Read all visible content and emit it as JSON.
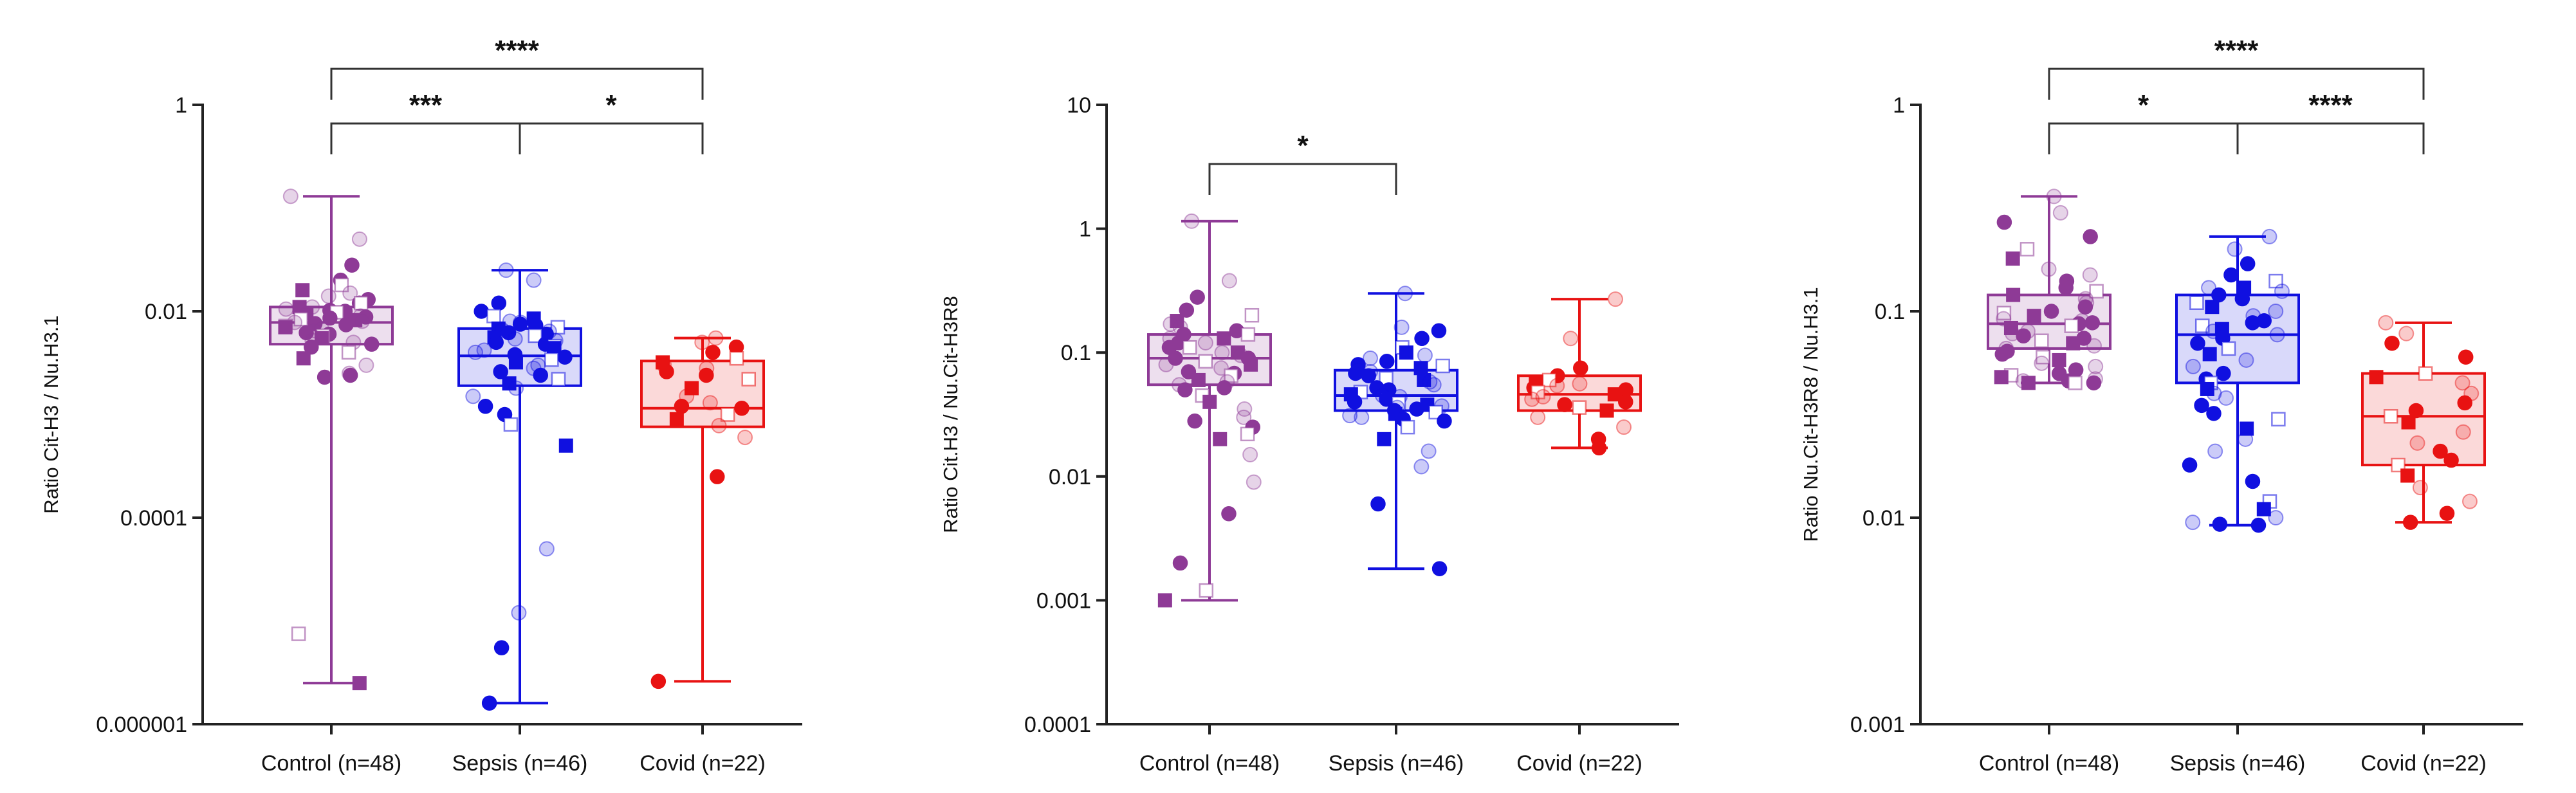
{
  "chart_data": [
    {
      "type": "box",
      "ylabel": "Ratio Cit-H3 / Nu.H3.1",
      "yscale": "log",
      "ylim": [
        1e-06,
        1
      ],
      "yticks": [
        {
          "value": 1,
          "label": "1"
        },
        {
          "value": 0.01,
          "label": "0.01"
        },
        {
          "value": 0.0001,
          "label": "0.0001"
        },
        {
          "value": 1e-06,
          "label": "0.000001"
        }
      ],
      "categories": [
        "Control (n=48)",
        "Sepsis (n=46)",
        "Covid (n=22)"
      ],
      "colors": [
        "#8e3a96",
        "#1010e0",
        "#e81212"
      ],
      "boxes": [
        {
          "min": 2.5e-06,
          "q1": 0.0048,
          "median": 0.0078,
          "q3": 0.011,
          "max": 0.13
        },
        {
          "min": 1.6e-06,
          "q1": 0.0019,
          "median": 0.0037,
          "q3": 0.0068,
          "max": 0.025
        },
        {
          "min": 2.6e-06,
          "q1": 0.00076,
          "median": 0.00115,
          "q3": 0.0033,
          "max": 0.0055
        }
      ],
      "points": [
        [
          0.13,
          0.05,
          0.028,
          0.02,
          0.018,
          0.016,
          0.015,
          0.014,
          0.013,
          0.012,
          0.012,
          0.011,
          0.011,
          0.0105,
          0.0102,
          0.01,
          0.0098,
          0.0095,
          0.0092,
          0.009,
          0.0088,
          0.0086,
          0.0084,
          0.0082,
          0.008,
          0.0078,
          0.0076,
          0.0074,
          0.0072,
          0.007,
          0.0068,
          0.0065,
          0.0062,
          0.006,
          0.0058,
          0.0055,
          0.0052,
          0.005,
          0.0048,
          0.0045,
          0.004,
          0.0035,
          0.003,
          0.0025,
          0.0024,
          0.0023,
          7.5e-06,
          2.5e-06
        ],
        [
          0.025,
          0.02,
          0.012,
          0.01,
          0.009,
          0.0085,
          0.008,
          0.0078,
          0.0075,
          0.0073,
          0.007,
          0.0068,
          0.0066,
          0.0064,
          0.0062,
          0.006,
          0.0058,
          0.0056,
          0.0054,
          0.0052,
          0.005,
          0.0048,
          0.0046,
          0.0044,
          0.0042,
          0.004,
          0.0038,
          0.0036,
          0.0034,
          0.0032,
          0.003,
          0.0028,
          0.0026,
          0.0024,
          0.0022,
          0.002,
          0.0018,
          0.0015,
          0.0012,
          0.001,
          0.0008,
          0.0005,
          5e-05,
          1.2e-05,
          5.5e-06,
          1.6e-06
        ],
        [
          0.0055,
          0.005,
          0.0045,
          0.004,
          0.0035,
          0.0032,
          0.003,
          0.0028,
          0.0026,
          0.0024,
          0.0022,
          0.0018,
          0.0015,
          0.0013,
          0.0012,
          0.00115,
          0.001,
          0.0009,
          0.00078,
          0.0006,
          0.00025,
          2.6e-06
        ]
      ],
      "significance": [
        {
          "from": 0,
          "to": 2,
          "label": "****",
          "level": 0
        },
        {
          "from": 0,
          "to": 1,
          "label": "***",
          "level": 1
        },
        {
          "from": 1,
          "to": 2,
          "label": "*",
          "level": 1
        }
      ]
    },
    {
      "type": "box",
      "ylabel": "Ratio Cit.H3 / Nu.Cit-H3R8",
      "yscale": "log",
      "ylim": [
        0.0001,
        10
      ],
      "yticks": [
        {
          "value": 10,
          "label": "10"
        },
        {
          "value": 1,
          "label": "1"
        },
        {
          "value": 0.1,
          "label": "0.1"
        },
        {
          "value": 0.01,
          "label": "0.01"
        },
        {
          "value": 0.001,
          "label": "0.001"
        },
        {
          "value": 0.0001,
          "label": "0.0001"
        }
      ],
      "categories": [
        "Control (n=48)",
        "Sepsis (n=46)",
        "Covid (n=22)"
      ],
      "colors": [
        "#8e3a96",
        "#1010e0",
        "#e81212"
      ],
      "boxes": [
        {
          "min": 0.001,
          "q1": 0.055,
          "median": 0.09,
          "q3": 0.14,
          "max": 1.15
        },
        {
          "min": 0.0018,
          "q1": 0.034,
          "median": 0.045,
          "q3": 0.072,
          "max": 0.3
        },
        {
          "min": 0.017,
          "q1": 0.034,
          "median": 0.046,
          "q3": 0.065,
          "max": 0.27
        }
      ],
      "points": [
        [
          1.15,
          0.38,
          0.28,
          0.22,
          0.2,
          0.18,
          0.17,
          0.16,
          0.15,
          0.14,
          0.14,
          0.13,
          0.13,
          0.12,
          0.12,
          0.11,
          0.11,
          0.1,
          0.1,
          0.095,
          0.09,
          0.09,
          0.085,
          0.08,
          0.08,
          0.075,
          0.07,
          0.068,
          0.065,
          0.06,
          0.058,
          0.055,
          0.052,
          0.05,
          0.045,
          0.04,
          0.035,
          0.03,
          0.028,
          0.025,
          0.022,
          0.02,
          0.015,
          0.009,
          0.005,
          0.002,
          0.0012,
          0.001
        ],
        [
          0.3,
          0.16,
          0.15,
          0.13,
          0.11,
          0.1,
          0.095,
          0.09,
          0.085,
          0.08,
          0.078,
          0.075,
          0.072,
          0.07,
          0.068,
          0.065,
          0.062,
          0.06,
          0.058,
          0.055,
          0.052,
          0.05,
          0.048,
          0.046,
          0.045,
          0.044,
          0.042,
          0.04,
          0.039,
          0.038,
          0.037,
          0.036,
          0.035,
          0.034,
          0.033,
          0.032,
          0.031,
          0.03,
          0.029,
          0.028,
          0.025,
          0.02,
          0.016,
          0.012,
          0.006,
          0.0018
        ],
        [
          0.27,
          0.13,
          0.075,
          0.065,
          0.06,
          0.058,
          0.056,
          0.054,
          0.052,
          0.05,
          0.048,
          0.046,
          0.044,
          0.042,
          0.04,
          0.038,
          0.036,
          0.034,
          0.03,
          0.025,
          0.02,
          0.017
        ]
      ],
      "significance": [
        {
          "from": 0,
          "to": 1,
          "label": "*",
          "level": 0
        }
      ]
    },
    {
      "type": "box",
      "ylabel": "Ratio Nu.Cit-H3R8 / Nu.H3.1",
      "yscale": "log",
      "ylim": [
        0.001,
        1
      ],
      "yticks": [
        {
          "value": 1,
          "label": "1"
        },
        {
          "value": 0.1,
          "label": "0.1"
        },
        {
          "value": 0.01,
          "label": "0.01"
        },
        {
          "value": 0.001,
          "label": "0.001"
        }
      ],
      "categories": [
        "Control (n=48)",
        "Sepsis (n=46)",
        "Covid (n=22)"
      ],
      "colors": [
        "#8e3a96",
        "#1010e0",
        "#e81212"
      ],
      "boxes": [
        {
          "min": 0.045,
          "q1": 0.066,
          "median": 0.087,
          "q3": 0.12,
          "max": 0.36
        },
        {
          "min": 0.0092,
          "q1": 0.045,
          "median": 0.077,
          "q3": 0.12,
          "max": 0.23
        },
        {
          "min": 0.0095,
          "q1": 0.018,
          "median": 0.031,
          "q3": 0.05,
          "max": 0.088
        }
      ],
      "points": [
        [
          0.36,
          0.3,
          0.27,
          0.23,
          0.2,
          0.18,
          0.16,
          0.15,
          0.14,
          0.13,
          0.125,
          0.12,
          0.115,
          0.11,
          0.105,
          0.1,
          0.098,
          0.095,
          0.092,
          0.09,
          0.088,
          0.087,
          0.085,
          0.083,
          0.08,
          0.078,
          0.076,
          0.074,
          0.072,
          0.07,
          0.068,
          0.066,
          0.064,
          0.062,
          0.06,
          0.058,
          0.056,
          0.054,
          0.052,
          0.05,
          0.049,
          0.048,
          0.047,
          0.046,
          0.046,
          0.045,
          0.045,
          0.045
        ],
        [
          0.23,
          0.2,
          0.17,
          0.15,
          0.14,
          0.13,
          0.13,
          0.125,
          0.12,
          0.115,
          0.11,
          0.105,
          0.1,
          0.095,
          0.09,
          0.088,
          0.085,
          0.082,
          0.08,
          0.077,
          0.074,
          0.07,
          0.066,
          0.062,
          0.058,
          0.054,
          0.05,
          0.047,
          0.045,
          0.042,
          0.04,
          0.038,
          0.035,
          0.032,
          0.03,
          0.027,
          0.024,
          0.021,
          0.018,
          0.015,
          0.012,
          0.011,
          0.01,
          0.0095,
          0.0093,
          0.0092
        ],
        [
          0.088,
          0.078,
          0.07,
          0.06,
          0.05,
          0.048,
          0.045,
          0.04,
          0.036,
          0.033,
          0.031,
          0.029,
          0.026,
          0.023,
          0.021,
          0.019,
          0.018,
          0.016,
          0.014,
          0.012,
          0.0105,
          0.0095
        ]
      ],
      "significance": [
        {
          "from": 0,
          "to": 2,
          "label": "****",
          "level": 0
        },
        {
          "from": 0,
          "to": 1,
          "label": "*",
          "level": 1
        },
        {
          "from": 1,
          "to": 2,
          "label": "****",
          "level": 1
        }
      ]
    }
  ]
}
